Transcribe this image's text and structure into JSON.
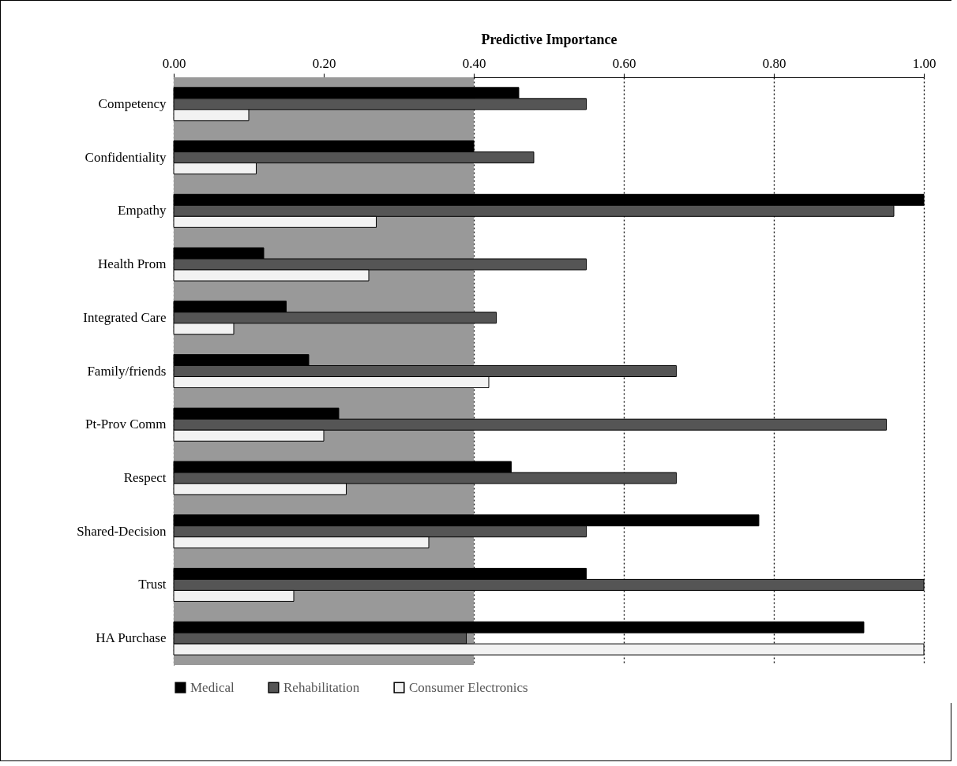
{
  "chart_data": {
    "type": "bar",
    "orientation": "horizontal",
    "xlabel": "Predictive Importance",
    "categories": [
      "Competency",
      "Confidentiality",
      "Empathy",
      "Health Prom",
      "Integrated Care",
      "Family/friends",
      "Pt-Prov Comm",
      "Respect",
      "Shared-Decision",
      "Trust",
      "HA Purchase"
    ],
    "series": [
      {
        "name": "Medical",
        "color": "#000000",
        "values": [
          0.46,
          0.4,
          1.0,
          0.12,
          0.15,
          0.18,
          0.22,
          0.45,
          0.78,
          0.55,
          0.92
        ]
      },
      {
        "name": "Rehabilitation",
        "color": "#555555",
        "values": [
          0.55,
          0.48,
          0.96,
          0.55,
          0.43,
          0.67,
          0.95,
          0.67,
          0.55,
          1.0,
          0.39
        ]
      },
      {
        "name": "Consumer Electronics",
        "color": "#f2f2f2",
        "values": [
          0.1,
          0.11,
          0.27,
          0.26,
          0.08,
          0.42,
          0.2,
          0.23,
          0.34,
          0.16,
          1.0
        ]
      }
    ],
    "xlim": [
      0,
      1
    ],
    "xticks": [
      {
        "value": 0,
        "label": "0.00"
      },
      {
        "value": 0.2,
        "label": "0.20"
      },
      {
        "value": 0.4,
        "label": "0.40"
      },
      {
        "value": 0.6,
        "label": "0.60"
      },
      {
        "value": 0.8,
        "label": "0.80"
      },
      {
        "value": 1,
        "label": "1.00"
      }
    ],
    "bands": [
      {
        "axis": "x",
        "from": 0,
        "to": 0.4,
        "color": "#999999"
      }
    ],
    "grid": "x",
    "legend": "bottom"
  }
}
